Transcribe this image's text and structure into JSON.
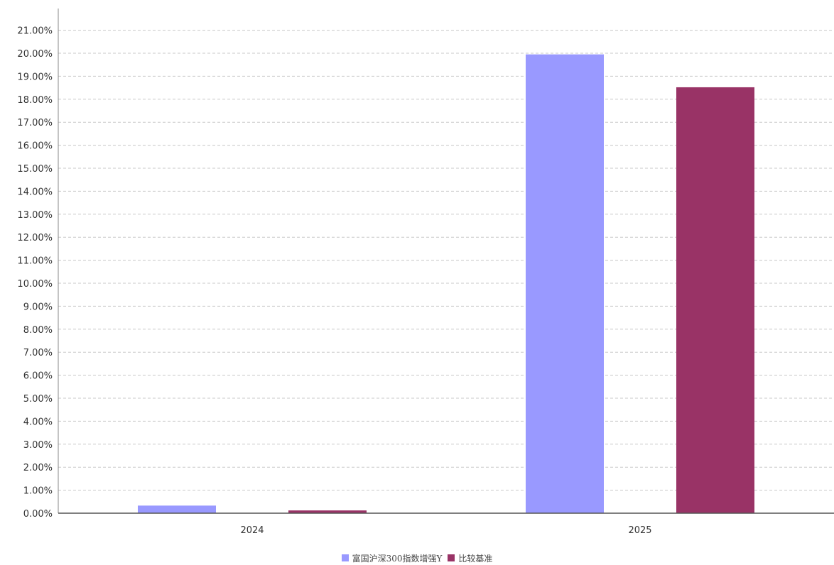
{
  "chart_data": {
    "type": "bar",
    "categories": [
      "2024",
      "2025"
    ],
    "series": [
      {
        "name": "富国沪深300指数增强Y",
        "values": [
          0.33,
          19.95
        ],
        "color": "#9999ff"
      },
      {
        "name": "比较基准",
        "values": [
          0.12,
          18.52
        ],
        "color": "#993366"
      }
    ],
    "ylim": [
      0,
      21
    ],
    "ytick_step": 1,
    "ytick_format": "percent_2dp",
    "grid": true,
    "legend": "bottom-center",
    "title": "",
    "xlabel": "",
    "ylabel": ""
  }
}
